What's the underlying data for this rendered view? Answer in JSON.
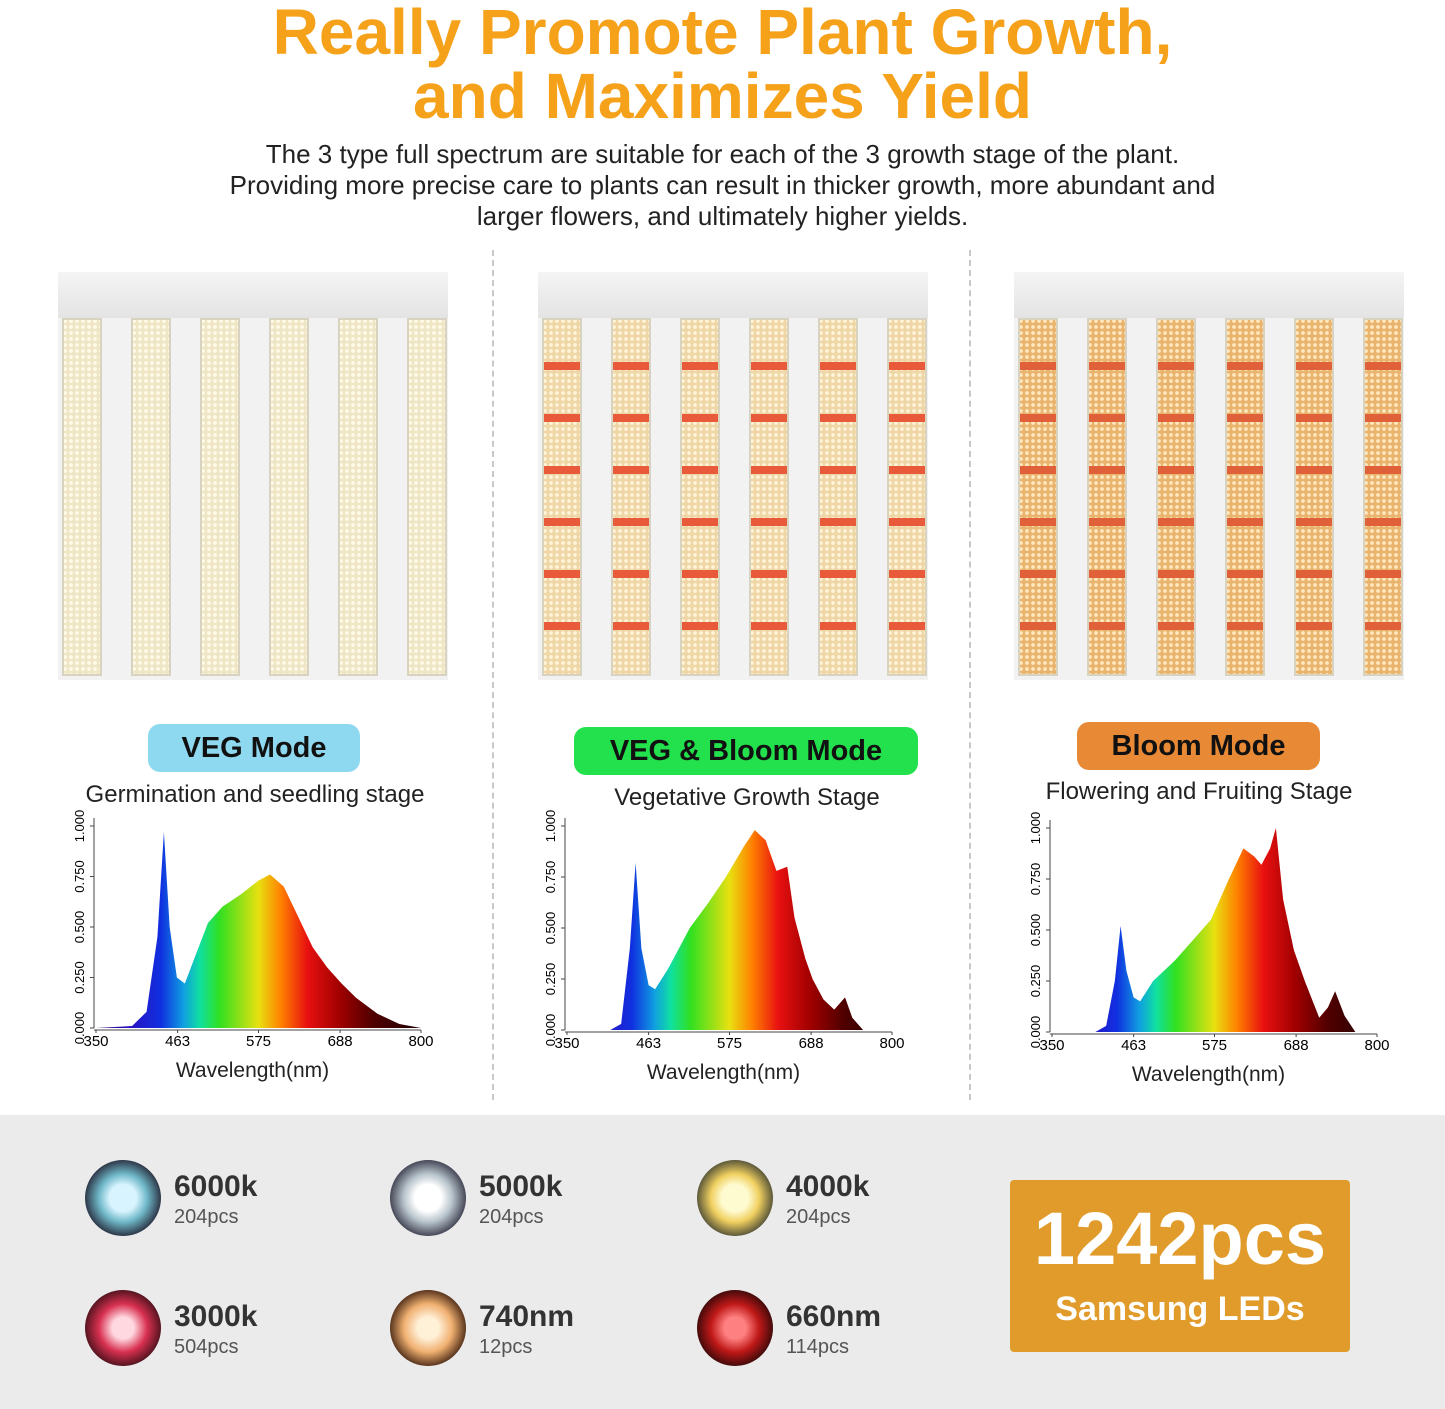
{
  "header": {
    "title": [
      "Really Promote Plant Growth,",
      "and Maximizes Yield"
    ],
    "subtitle": [
      "The 3 type full spectrum are suitable for each of the 3 growth stage of the plant.",
      "Providing more precise care to plants can result in thicker growth, more abundant and",
      "larger flowers, and ultimately higher yields."
    ]
  },
  "panels": [
    {
      "mode": "VEG Mode",
      "stage": "Germination and seedling stage"
    },
    {
      "mode": "VEG & Bloom Mode",
      "stage": "Vegetative Growth Stage"
    },
    {
      "mode": "Bloom Mode",
      "stage": "Flowering and Fruiting Stage"
    }
  ],
  "chart_data": [
    {
      "type": "area",
      "xlabel": "Wavelength(nm)",
      "x": [
        350,
        400,
        420,
        435,
        444,
        452,
        462,
        473,
        490,
        505,
        525,
        550,
        575,
        591,
        610,
        630,
        650,
        670,
        690,
        710,
        740,
        770,
        800
      ],
      "values": [
        0,
        0.01,
        0.08,
        0.45,
        0.97,
        0.5,
        0.25,
        0.22,
        0.38,
        0.52,
        0.6,
        0.66,
        0.73,
        0.76,
        0.7,
        0.55,
        0.4,
        0.3,
        0.22,
        0.15,
        0.07,
        0.02,
        0
      ],
      "xlim": [
        350,
        800
      ],
      "ylim": [
        0,
        1
      ],
      "xticks": [
        350,
        463,
        575,
        688,
        800
      ],
      "yticks": [
        {
          "value": 0,
          "label": "0.000"
        },
        {
          "value": 0.25,
          "label": "0.250"
        },
        {
          "value": 0.5,
          "label": "0.500"
        },
        {
          "value": 0.75,
          "label": "0.750"
        },
        {
          "value": 1,
          "label": "1.000"
        }
      ]
    },
    {
      "type": "area",
      "xlabel": "Wavelength(nm)",
      "x": [
        350,
        410,
        425,
        437,
        445,
        453,
        463,
        472,
        490,
        520,
        545,
        570,
        595,
        610,
        625,
        640,
        655,
        665,
        680,
        690,
        705,
        720,
        735,
        745,
        760,
        800
      ],
      "values": [
        0,
        0,
        0.03,
        0.4,
        0.82,
        0.4,
        0.22,
        0.2,
        0.3,
        0.5,
        0.62,
        0.75,
        0.9,
        0.98,
        0.93,
        0.78,
        0.8,
        0.55,
        0.35,
        0.25,
        0.15,
        0.1,
        0.16,
        0.06,
        0,
        0
      ],
      "xlim": [
        350,
        800
      ],
      "ylim": [
        0,
        1
      ],
      "xticks": [
        350,
        463,
        575,
        688,
        800
      ],
      "yticks": [
        {
          "value": 0,
          "label": "0.000"
        },
        {
          "value": 0.25,
          "label": "0.250"
        },
        {
          "value": 0.5,
          "label": "0.500"
        },
        {
          "value": 0.75,
          "label": "0.750"
        },
        {
          "value": 1,
          "label": "1.000"
        }
      ]
    },
    {
      "type": "area",
      "xlabel": "Wavelength(nm)",
      "x": [
        350,
        410,
        425,
        437,
        445,
        453,
        463,
        472,
        490,
        520,
        545,
        570,
        595,
        615,
        630,
        640,
        652,
        660,
        670,
        685,
        700,
        720,
        732,
        742,
        755,
        770,
        800
      ],
      "values": [
        0,
        0,
        0.03,
        0.25,
        0.52,
        0.3,
        0.17,
        0.15,
        0.25,
        0.35,
        0.45,
        0.55,
        0.75,
        0.9,
        0.86,
        0.82,
        0.9,
        1,
        0.65,
        0.4,
        0.25,
        0.07,
        0.12,
        0.2,
        0.08,
        0,
        0
      ],
      "xlim": [
        350,
        800
      ],
      "ylim": [
        0,
        1
      ],
      "xticks": [
        350,
        463,
        575,
        688,
        800
      ],
      "yticks": [
        {
          "value": 0,
          "label": "0.000"
        },
        {
          "value": 0.25,
          "label": "0.250"
        },
        {
          "value": 0.5,
          "label": "0.500"
        },
        {
          "value": 0.75,
          "label": "0.750"
        },
        {
          "value": 1,
          "label": "1.000"
        }
      ]
    }
  ],
  "leds": [
    {
      "name": "6000k",
      "count": "204pcs"
    },
    {
      "name": "5000k",
      "count": "204pcs"
    },
    {
      "name": "4000k",
      "count": "204pcs"
    },
    {
      "name": "3000k",
      "count": "504pcs"
    },
    {
      "name": "740nm",
      "count": "12pcs"
    },
    {
      "name": "660nm",
      "count": "114pcs"
    }
  ],
  "total": {
    "number": "1242pcs",
    "label": "Samsung LEDs"
  }
}
